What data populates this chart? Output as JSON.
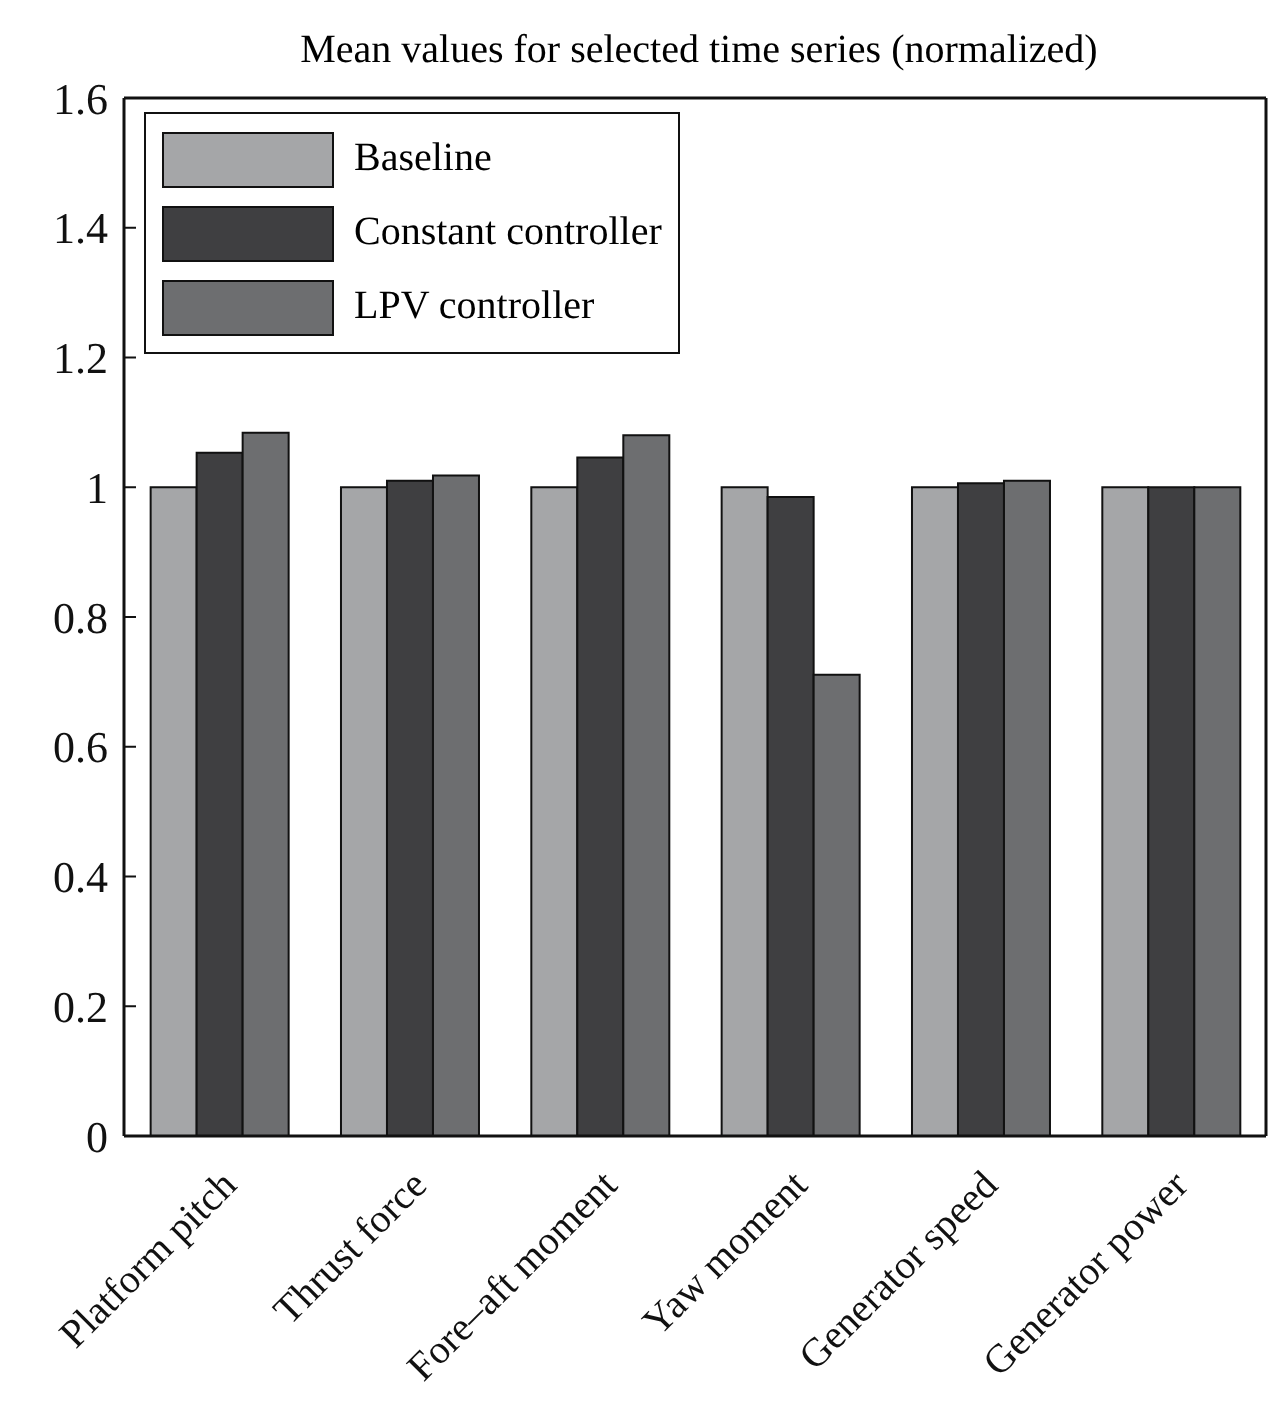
{
  "chart_data": {
    "type": "bar",
    "title": "Mean values for selected time series (normalized)",
    "categories": [
      "Platform pitch",
      "Thrust force",
      "Fore–aft moment",
      "Yaw moment",
      "Generator speed",
      "Generator power"
    ],
    "series": [
      {
        "name": "Baseline",
        "color": "#a5a6a8",
        "values": [
          1,
          1,
          1,
          1,
          1,
          1
        ]
      },
      {
        "name": "Constant controller",
        "color": "#3f3f41",
        "values": [
          1.053,
          1.01,
          1.046,
          0.985,
          1.006,
          1
        ]
      },
      {
        "name": "LPV controller",
        "color": "#6d6e70",
        "values": [
          1.084,
          1.018,
          1.08,
          0.711,
          1.01,
          1
        ]
      }
    ],
    "ylim": [
      0,
      1.6
    ],
    "yticks": [
      0,
      0.2,
      0.4,
      0.6,
      0.8,
      1,
      1.2,
      1.4,
      1.6
    ],
    "legend": "top left"
  }
}
